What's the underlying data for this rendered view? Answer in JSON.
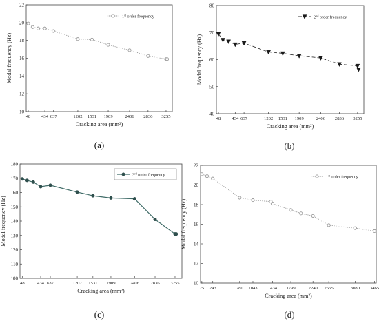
{
  "chart_data": [
    {
      "panel": "(a)",
      "type": "line",
      "xlabel": "Cracking area (mm²)",
      "ylabel": "Modal frequency (Hz)",
      "ylim": [
        10,
        22
      ],
      "yticks": [
        10,
        12,
        14,
        16,
        18,
        20,
        22
      ],
      "xlim": [
        0,
        3400
      ],
      "xticks": [
        48,
        434,
        637,
        1202,
        1531,
        1909,
        2406,
        2836,
        3255
      ],
      "grid": false,
      "legend": "top-right",
      "line_style": "dotted",
      "marker": "circle-open",
      "color": "#9a9a9a",
      "series": [
        {
          "name": "1st order frequency",
          "x": [
            48,
            150,
            280,
            434,
            637,
            1202,
            1531,
            1909,
            2406,
            2836,
            3255,
            3280
          ],
          "y": [
            19.9,
            19.5,
            19.35,
            19.35,
            19.05,
            18.15,
            18.1,
            17.5,
            16.9,
            16.25,
            15.9,
            15.9
          ]
        }
      ]
    },
    {
      "panel": "(b)",
      "type": "line",
      "xlabel": "Cracking area (mm²)",
      "ylabel": "Modal frequency (Hz)",
      "ylim": [
        40,
        80
      ],
      "yticks": [
        40,
        50,
        60,
        70,
        80
      ],
      "xlim": [
        0,
        3400
      ],
      "xticks": [
        48,
        434,
        637,
        1202,
        1531,
        1909,
        2406,
        2836,
        3255
      ],
      "grid": false,
      "legend": "top-right",
      "line_style": "dashed",
      "marker": "triangle-down",
      "color": "#1a1a1a",
      "series": [
        {
          "name": "2nd order frequency",
          "x": [
            48,
            150,
            280,
            434,
            637,
            1202,
            1531,
            1909,
            2406,
            2836,
            3255,
            3280
          ],
          "y": [
            69.5,
            67.3,
            66.7,
            65.6,
            66.1,
            62.8,
            62.3,
            61.4,
            60.6,
            58.3,
            57.7,
            56.4
          ]
        }
      ]
    },
    {
      "panel": "(c)",
      "type": "line",
      "xlabel": "Cracking area (mm²)",
      "ylabel": "Modal frequency (Hz)",
      "ylim": [
        100,
        180
      ],
      "yticks": [
        100,
        110,
        120,
        130,
        140,
        150,
        160,
        170,
        180
      ],
      "xlim": [
        0,
        3400
      ],
      "xticks": [
        48,
        434,
        637,
        1202,
        1531,
        1909,
        2406,
        2836,
        3255
      ],
      "grid": false,
      "legend": "top-right",
      "line_style": "solid",
      "marker": "circle-filled",
      "color": "#3f6b67",
      "series": [
        {
          "name": "3rd order frequency",
          "x": [
            48,
            150,
            280,
            434,
            637,
            1202,
            1531,
            1909,
            2406,
            2836,
            3255,
            3280
          ],
          "y": [
            169.5,
            168.5,
            167.3,
            164.1,
            165.1,
            160.3,
            157.8,
            156.2,
            155.6,
            141.2,
            131.0,
            131.0
          ]
        }
      ]
    },
    {
      "panel": "(d)",
      "type": "line",
      "xlabel": "Cracking area (mm²)",
      "ylabel": "Modal frequency (Hz)",
      "ylim": [
        10,
        22
      ],
      "yticks": [
        10,
        12,
        14,
        16,
        18,
        20,
        22
      ],
      "xlim": [
        0,
        3500
      ],
      "xticks": [
        25,
        243,
        780,
        1043,
        1434,
        1799,
        2240,
        2555,
        3080,
        3465
      ],
      "grid": false,
      "legend": "top-right",
      "line_style": "dotted",
      "marker": "circle-open",
      "color": "#9a9a9a",
      "series": [
        {
          "name": "1st order frequency",
          "x": [
            25,
            130,
            243,
            780,
            1043,
            1400,
            1434,
            1799,
            2000,
            2240,
            2555,
            3080,
            3465
          ],
          "y": [
            21.1,
            20.9,
            20.65,
            18.7,
            18.45,
            18.3,
            18.1,
            17.45,
            17.1,
            16.85,
            15.9,
            15.6,
            15.3
          ]
        }
      ]
    }
  ]
}
